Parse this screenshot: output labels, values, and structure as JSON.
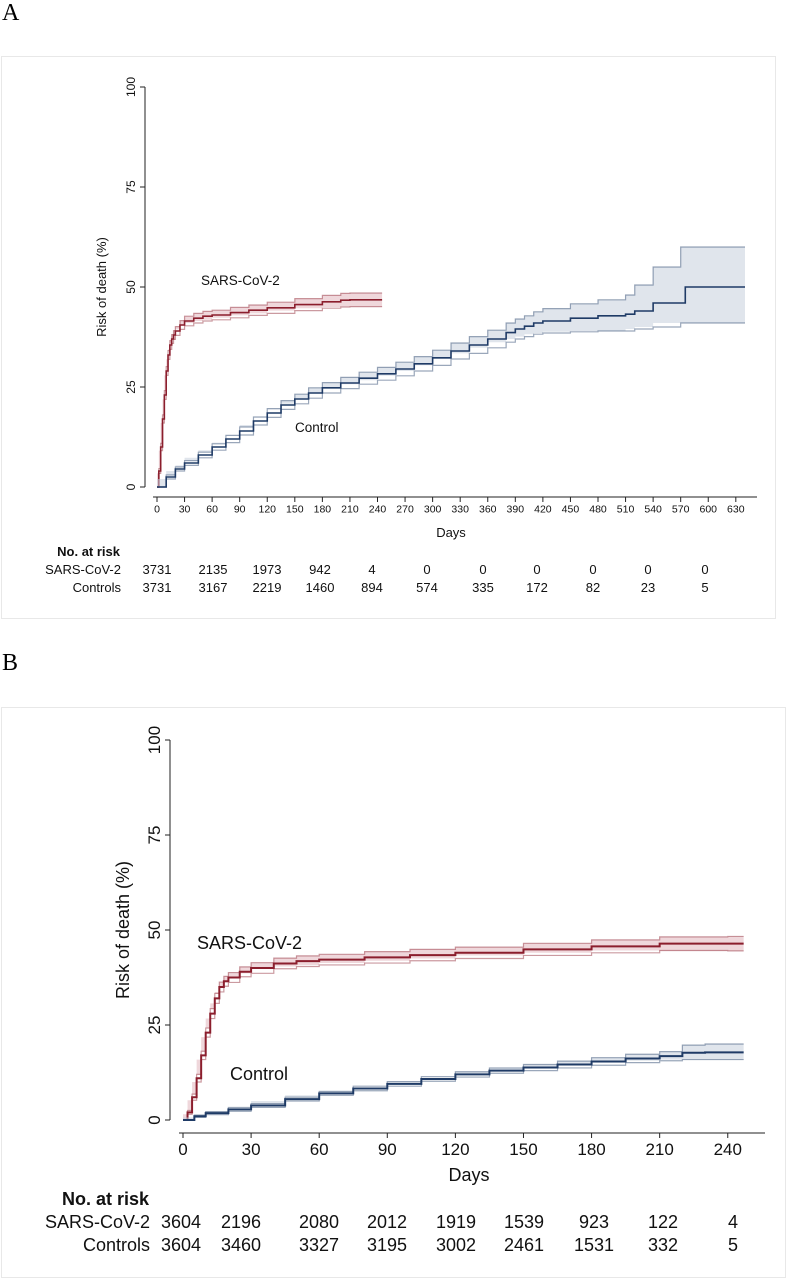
{
  "panels": [
    {
      "letter": "A",
      "risk_table": {
        "heading": "No. at risk",
        "rows": [
          {
            "label": "SARS-CoV-2",
            "values": [
              "3731",
              "2135",
              "1973",
              "942",
              "4",
              "0",
              "0",
              "0",
              "0",
              "0",
              "0"
            ]
          },
          {
            "label": "Controls",
            "values": [
              "3731",
              "3167",
              "2219",
              "1460",
              "894",
              "574",
              "335",
              "172",
              "82",
              "23",
              "5"
            ]
          }
        ]
      }
    },
    {
      "letter": "B",
      "risk_table": {
        "heading": "No. at risk",
        "rows": [
          {
            "label": "SARS-CoV-2",
            "values": [
              "3604",
              "2196",
              "2080",
              "2012",
              "1919",
              "1539",
              "923",
              "122",
              "4"
            ]
          },
          {
            "label": "Controls",
            "values": [
              "3604",
              "3460",
              "3327",
              "3195",
              "3002",
              "2461",
              "1531",
              "332",
              "5"
            ]
          }
        ]
      }
    }
  ],
  "chart_data": [
    {
      "type": "line",
      "subtype": "cumulative-incidence-step",
      "title": "",
      "xlabel": "Days",
      "ylabel": "Risk of death (%)",
      "xlim": [
        0,
        640
      ],
      "ylim": [
        0,
        100
      ],
      "xticks": [
        0,
        30,
        60,
        90,
        120,
        150,
        180,
        210,
        240,
        270,
        300,
        330,
        360,
        390,
        420,
        450,
        480,
        510,
        540,
        570,
        600,
        630
      ],
      "yticks": [
        0,
        25,
        50,
        75,
        100
      ],
      "ci_band": true,
      "legend": "none",
      "annotations": [
        {
          "text": "SARS-CoV-2",
          "series": "SARS-CoV-2"
        },
        {
          "text": "Control",
          "series": "Control"
        }
      ],
      "series": [
        {
          "name": "SARS-CoV-2",
          "color": "#8b1e2d",
          "band_color": "#e2b6bd",
          "x": [
            0,
            2,
            4,
            6,
            8,
            10,
            12,
            14,
            16,
            18,
            20,
            25,
            30,
            40,
            50,
            60,
            80,
            100,
            120,
            150,
            180,
            200,
            210,
            240,
            245
          ],
          "y": [
            0,
            4,
            10,
            17,
            23,
            29,
            33,
            35.5,
            37,
            38,
            39,
            40.5,
            41.5,
            42.2,
            42.7,
            43,
            43.6,
            44.2,
            44.8,
            45.6,
            46.3,
            46.7,
            46.8,
            46.8,
            46.8
          ],
          "ci_half_width": [
            0,
            0.6,
            0.9,
            1,
            1.1,
            1.1,
            1.1,
            1.1,
            1.1,
            1.1,
            1.1,
            1.1,
            1.2,
            1.2,
            1.2,
            1.2,
            1.3,
            1.3,
            1.4,
            1.5,
            1.6,
            1.7,
            1.7,
            1.7,
            1.7
          ]
        },
        {
          "name": "Control",
          "color": "#1f3b66",
          "band_color": "#c6cfdc",
          "x": [
            0,
            10,
            20,
            30,
            45,
            60,
            75,
            90,
            105,
            120,
            135,
            150,
            165,
            180,
            200,
            220,
            240,
            260,
            280,
            300,
            320,
            340,
            360,
            380,
            390,
            400,
            410,
            420,
            450,
            480,
            510,
            520,
            540,
            570,
            575,
            640
          ],
          "y": [
            0,
            2.5,
            4.5,
            6,
            8,
            10,
            12,
            14,
            16.5,
            18.5,
            20.5,
            22,
            23.5,
            24.8,
            26,
            27.2,
            28.3,
            29.5,
            30.8,
            32.3,
            34,
            35.5,
            37,
            38.6,
            39.5,
            40.2,
            41,
            41.5,
            42.2,
            42.8,
            43.2,
            44,
            46,
            46,
            50,
            50
          ],
          "ci_upper": [
            0,
            3,
            5,
            6.6,
            8.7,
            10.8,
            12.9,
            15,
            17.5,
            19.6,
            21.6,
            23.2,
            24.8,
            26.1,
            27.4,
            28.7,
            29.9,
            31.2,
            32.6,
            34.2,
            36,
            37.6,
            39.2,
            41,
            42,
            42.8,
            43.8,
            44.6,
            45.8,
            46.8,
            48,
            50.5,
            55,
            60,
            60,
            60
          ],
          "ci_lower": [
            0,
            2,
            4,
            5.4,
            7.3,
            9.2,
            11.1,
            13,
            15.5,
            17.4,
            19.4,
            20.8,
            22.2,
            23.5,
            24.6,
            25.7,
            26.7,
            27.8,
            29,
            30.4,
            32,
            33.4,
            34.8,
            36.2,
            37,
            37.6,
            38.2,
            38.5,
            38.8,
            39,
            39,
            39.5,
            40,
            41,
            41,
            41
          ]
        }
      ]
    },
    {
      "type": "line",
      "subtype": "cumulative-incidence-step",
      "title": "",
      "xlabel": "Days",
      "ylabel": "Risk of death (%)",
      "xlim": [
        0,
        252
      ],
      "ylim": [
        0,
        100
      ],
      "xticks": [
        0,
        30,
        60,
        90,
        120,
        150,
        180,
        210,
        240
      ],
      "yticks": [
        0,
        25,
        50,
        75,
        100
      ],
      "ci_band": true,
      "legend": "none",
      "annotations": [
        {
          "text": "SARS-CoV-2",
          "series": "SARS-CoV-2"
        },
        {
          "text": "Control",
          "series": "Control"
        }
      ],
      "series": [
        {
          "name": "SARS-CoV-2",
          "color": "#8b1e2d",
          "band_color": "#e2b6bd",
          "x": [
            0,
            2,
            4,
            6,
            8,
            10,
            12,
            14,
            16,
            18,
            20,
            25,
            30,
            40,
            50,
            60,
            80,
            100,
            120,
            150,
            180,
            210,
            240,
            247
          ],
          "y": [
            0,
            2,
            6,
            11,
            17,
            23,
            28,
            32,
            35,
            36.5,
            37.5,
            39,
            40,
            41.2,
            41.8,
            42.2,
            42.8,
            43.4,
            44,
            44.9,
            45.7,
            46.4,
            46.4,
            46.4
          ],
          "ci_half_width": [
            0,
            0.5,
            0.8,
            1,
            1.1,
            1.2,
            1.3,
            1.3,
            1.3,
            1.3,
            1.3,
            1.3,
            1.4,
            1.4,
            1.4,
            1.4,
            1.5,
            1.5,
            1.5,
            1.6,
            1.7,
            1.8,
            1.9,
            1.9
          ]
        },
        {
          "name": "Control",
          "color": "#1f3b66",
          "band_color": "#c6cfdc",
          "x": [
            0,
            5,
            10,
            20,
            30,
            45,
            60,
            75,
            90,
            105,
            120,
            135,
            150,
            165,
            180,
            195,
            210,
            220,
            230,
            247
          ],
          "y": [
            0,
            1,
            1.8,
            2.8,
            3.8,
            5.5,
            7,
            8.3,
            9.5,
            10.8,
            12,
            13,
            13.8,
            14.6,
            15.4,
            16.2,
            16.8,
            17.7,
            17.8,
            17.8
          ],
          "ci_upper": [
            0,
            1.3,
            2.2,
            3.3,
            4.3,
            6,
            7.5,
            8.9,
            10.1,
            11.4,
            12.7,
            13.7,
            14.6,
            15.5,
            16.4,
            17.3,
            18,
            19.7,
            20,
            20
          ],
          "ci_lower": [
            0,
            0.7,
            1.4,
            2.3,
            3.3,
            5,
            6.5,
            7.7,
            8.9,
            10.2,
            11.3,
            12.3,
            13,
            13.7,
            14.4,
            15.1,
            15.6,
            15.9,
            15.9,
            15.9
          ]
        }
      ]
    }
  ]
}
